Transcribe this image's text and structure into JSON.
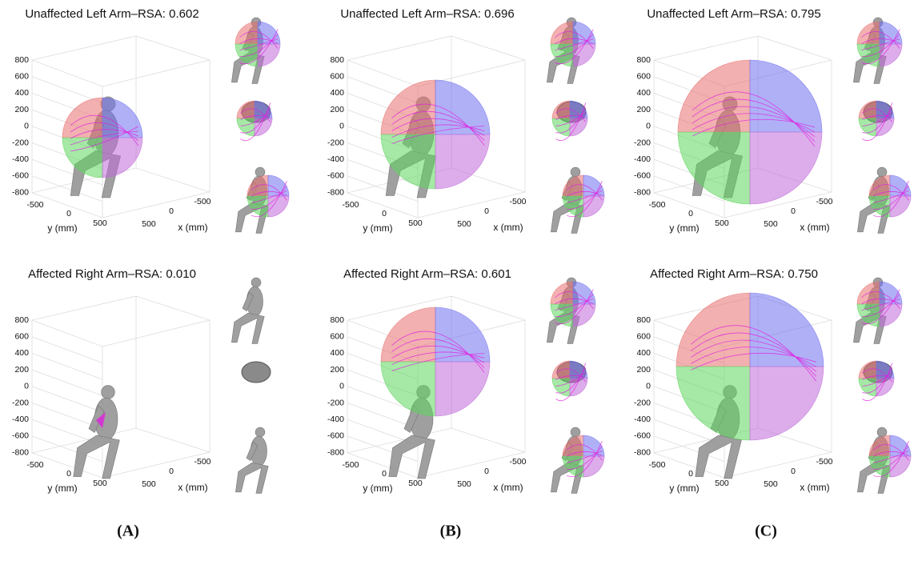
{
  "panels": [
    {
      "title": "Unaffected Left Arm–RSA: 0.602"
    },
    {
      "title": "Unaffected Left Arm–RSA: 0.696"
    },
    {
      "title": "Unaffected Left Arm–RSA: 0.795"
    },
    {
      "title": "Affected Right Arm–RSA: 0.010"
    },
    {
      "title": "Affected Right Arm–RSA: 0.601"
    },
    {
      "title": "Affected Right Arm–RSA: 0.750"
    }
  ],
  "axes": {
    "z_tick_labels": [
      "800",
      "600",
      "400",
      "200",
      "0",
      "-200",
      "-400",
      "-600",
      "-800"
    ],
    "y_tick_labels": [
      "-500",
      "0",
      "500"
    ],
    "x_tick_labels": [
      "-500",
      "0",
      "500"
    ],
    "y_label": "y (mm)",
    "x_label": "x (mm)"
  },
  "column_labels": [
    "(A)",
    "(B)",
    "(C)"
  ]
}
